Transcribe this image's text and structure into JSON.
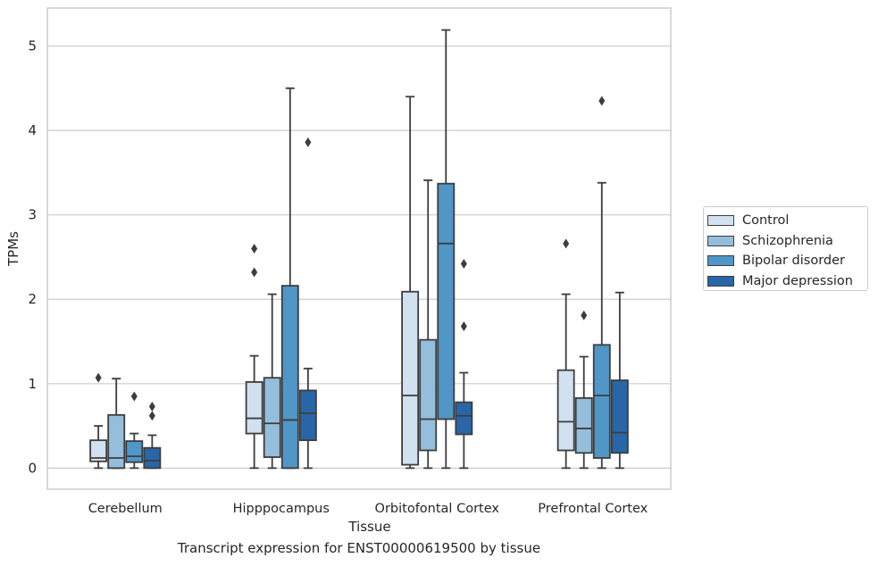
{
  "chart_data": {
    "type": "box",
    "xlabel": "Tissue",
    "ylabel": "TPMs",
    "caption": "Transcript expression for ENST00000619500 by tissue",
    "categories": [
      "Cerebellum",
      "Hipppocampus",
      "Orbitofontal Cortex",
      "Prefrontal Cortex"
    ],
    "ylim": [
      -0.25,
      5.45
    ],
    "yticks": [
      0,
      1,
      2,
      3,
      4,
      5
    ],
    "grid": true,
    "legend_position": "right",
    "series": [
      {
        "name": "Control",
        "color": "#d1e1f0",
        "boxes": [
          {
            "whislo": 0.0,
            "q1": 0.08,
            "median": 0.12,
            "q3": 0.33,
            "whishi": 0.5,
            "fliers": [
              1.07
            ]
          },
          {
            "whislo": 0.0,
            "q1": 0.41,
            "median": 0.59,
            "q3": 1.02,
            "whishi": 1.33,
            "fliers": [
              2.32,
              2.6
            ]
          },
          {
            "whislo": 0.0,
            "q1": 0.04,
            "median": 0.86,
            "q3": 2.09,
            "whishi": 4.4,
            "fliers": []
          },
          {
            "whislo": 0.0,
            "q1": 0.21,
            "median": 0.55,
            "q3": 1.16,
            "whishi": 2.06,
            "fliers": [
              2.66
            ]
          }
        ]
      },
      {
        "name": "Schizophrenia",
        "color": "#94bedb",
        "boxes": [
          {
            "whislo": 0.0,
            "q1": 0.0,
            "median": 0.12,
            "q3": 0.63,
            "whishi": 1.06,
            "fliers": []
          },
          {
            "whislo": 0.0,
            "q1": 0.13,
            "median": 0.53,
            "q3": 1.07,
            "whishi": 2.06,
            "fliers": []
          },
          {
            "whislo": 0.0,
            "q1": 0.21,
            "median": 0.58,
            "q3": 1.52,
            "whishi": 3.41,
            "fliers": []
          },
          {
            "whislo": 0.0,
            "q1": 0.18,
            "median": 0.47,
            "q3": 0.83,
            "whishi": 1.32,
            "fliers": [
              1.81
            ]
          }
        ]
      },
      {
        "name": "Bipolar disorder",
        "color": "#5096c7",
        "boxes": [
          {
            "whislo": 0.0,
            "q1": 0.07,
            "median": 0.14,
            "q3": 0.32,
            "whishi": 0.41,
            "fliers": [
              0.85
            ]
          },
          {
            "whislo": 0.0,
            "q1": 0.0,
            "median": 0.57,
            "q3": 2.16,
            "whishi": 4.5,
            "fliers": []
          },
          {
            "whislo": 0.0,
            "q1": 0.58,
            "median": 2.66,
            "q3": 3.37,
            "whishi": 5.19,
            "fliers": []
          },
          {
            "whislo": 0.0,
            "q1": 0.12,
            "median": 0.86,
            "q3": 1.46,
            "whishi": 3.38,
            "fliers": [
              4.35
            ]
          }
        ]
      },
      {
        "name": "Major depression",
        "color": "#2866a8",
        "boxes": [
          {
            "whislo": 0.0,
            "q1": 0.0,
            "median": 0.09,
            "q3": 0.24,
            "whishi": 0.39,
            "fliers": [
              0.62,
              0.73
            ]
          },
          {
            "whislo": 0.0,
            "q1": 0.33,
            "median": 0.65,
            "q3": 0.92,
            "whishi": 1.18,
            "fliers": [
              3.86
            ]
          },
          {
            "whislo": 0.0,
            "q1": 0.4,
            "median": 0.62,
            "q3": 0.78,
            "whishi": 1.13,
            "fliers": [
              1.68,
              2.42
            ]
          },
          {
            "whislo": 0.0,
            "q1": 0.18,
            "median": 0.42,
            "q3": 1.04,
            "whishi": 2.08,
            "fliers": []
          }
        ]
      }
    ]
  }
}
